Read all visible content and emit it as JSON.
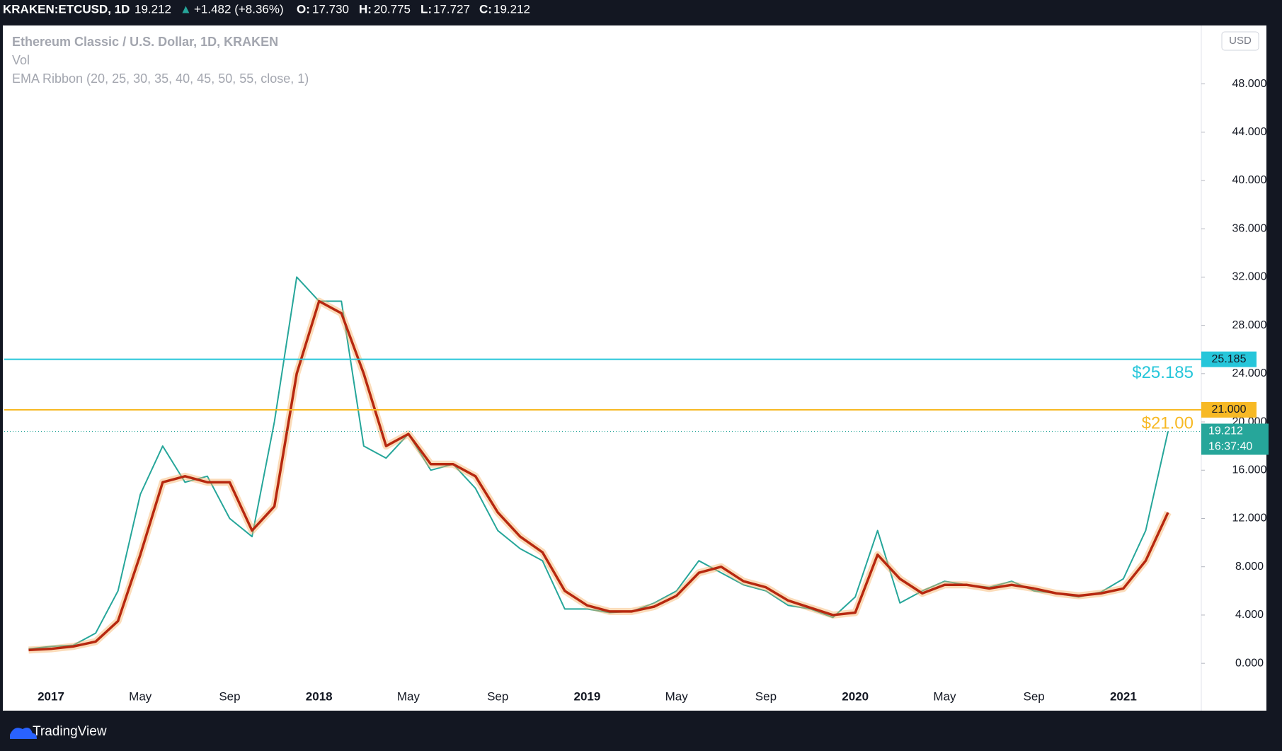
{
  "header": {
    "symbol": "KRAKEN:ETCUSD, 1D",
    "price": "19.212",
    "arrow": "▲",
    "change": "+1.482 (+8.36%)",
    "o_label": "O:",
    "o": "17.730",
    "h_label": "H:",
    "h": "20.775",
    "l_label": "L:",
    "l": "17.727",
    "c_label": "C:",
    "c": "19.212"
  },
  "chart_data": {
    "type": "line",
    "title": "Ethereum Classic / U.S. Dollar, 1D, KRAKEN",
    "volume_label": "Vol",
    "currency": "USD",
    "categories": [
      null,
      "2017",
      null,
      null,
      null,
      "May",
      null,
      null,
      null,
      "Sep",
      null,
      null,
      null,
      "2018",
      null,
      null,
      null,
      "May",
      null,
      null,
      null,
      "Sep",
      null,
      null,
      null,
      "2019",
      null,
      null,
      null,
      "May",
      null,
      null,
      null,
      "Sep",
      null,
      null,
      null,
      "2020",
      null,
      null,
      null,
      "May",
      null,
      null,
      null,
      "Sep",
      null,
      null,
      null,
      "2021",
      null,
      null
    ],
    "series": [
      {
        "name": "Ethereum Classic / U.S. Dollar, 1D, KRAKEN",
        "color": "#26a69a",
        "values": [
          1.2,
          1.4,
          1.5,
          2.5,
          6.0,
          14,
          18,
          15,
          15.5,
          12,
          10.5,
          20,
          32,
          30,
          30,
          18,
          17,
          19,
          16,
          16.5,
          14.5,
          11,
          9.5,
          8.5,
          4.5,
          4.5,
          4.2,
          4.3,
          5.0,
          6.0,
          8.5,
          7.5,
          6.5,
          6.0,
          4.8,
          4.5,
          3.8,
          5.5,
          11,
          5.0,
          6.0,
          6.8,
          6.5,
          6.3,
          6.8,
          6.0,
          5.8,
          5.5,
          5.9,
          7.0,
          11,
          19.212
        ]
      },
      {
        "name": "EMA Ribbon (20, 25, 30, 35, 40, 45, 50, 55, close, 1)",
        "color": "#b7280f",
        "values": [
          1.1,
          1.2,
          1.4,
          1.8,
          3.5,
          9,
          15,
          15.5,
          15,
          15,
          11,
          13,
          24,
          30,
          29,
          24,
          18,
          19,
          16.5,
          16.5,
          15.5,
          12.5,
          10.5,
          9.2,
          6,
          4.8,
          4.3,
          4.3,
          4.7,
          5.6,
          7.5,
          8,
          6.8,
          6.3,
          5.2,
          4.6,
          4.0,
          4.2,
          9,
          7,
          5.8,
          6.5,
          6.5,
          6.2,
          6.5,
          6.2,
          5.8,
          5.6,
          5.8,
          6.2,
          8.5,
          12.5
        ]
      }
    ],
    "ylim": [
      -3.92,
      52.84
    ],
    "yticks": [
      {
        "value": 0,
        "label": "0.000"
      },
      {
        "value": 4,
        "label": "4.000"
      },
      {
        "value": 8,
        "label": "8.000"
      },
      {
        "value": 12,
        "label": "12.000"
      },
      {
        "value": 16,
        "label": "16.000"
      },
      {
        "value": 20,
        "label": "20.000"
      },
      {
        "value": 24,
        "label": "24.000"
      },
      {
        "value": 28,
        "label": "28.000"
      },
      {
        "value": 32,
        "label": "32.000"
      },
      {
        "value": 36,
        "label": "36.000"
      },
      {
        "value": 40,
        "label": "40.000"
      },
      {
        "value": 44,
        "label": "44.000"
      },
      {
        "value": 48,
        "label": "48.000"
      }
    ],
    "horizontal_lines": [
      {
        "value": 25.185,
        "axis_label": "25.185",
        "annotation": "$25.185",
        "color": "#26c6da"
      },
      {
        "value": 21.0,
        "axis_label": "21.000",
        "annotation": "$21.00",
        "color": "#f7b924"
      }
    ],
    "countdown": "16:37:40",
    "grid": false
  },
  "footer": {
    "brand": "TradingView"
  }
}
